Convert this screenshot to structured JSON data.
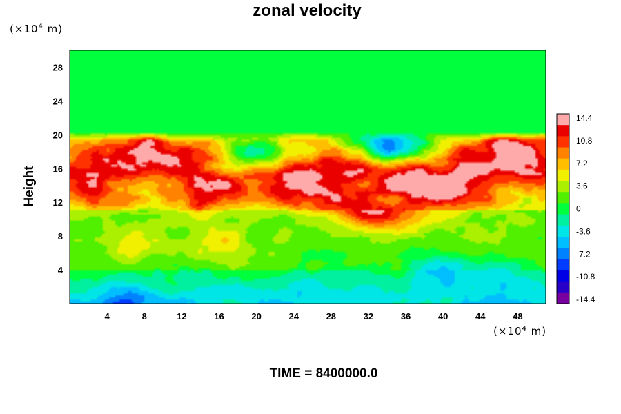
{
  "chart_data": {
    "type": "heatmap",
    "title": "zonal velocity",
    "ylabel": "Height",
    "xunit": {
      "prefix": "(×10",
      "exp": "4",
      "suffix": " m)"
    },
    "yunit": {
      "prefix": "(×10",
      "exp": "4",
      "suffix": " m)"
    },
    "xlim": [
      0,
      51
    ],
    "ylim": [
      0,
      30
    ],
    "xticks": [
      4,
      8,
      12,
      16,
      20,
      24,
      28,
      32,
      36,
      40,
      44,
      48
    ],
    "yticks": [
      4,
      8,
      12,
      16,
      20,
      24,
      28
    ],
    "colorbar": {
      "ticks": [
        "14.4",
        "10.8",
        "7.2",
        "3.6",
        "0",
        "-3.6",
        "-7.2",
        "-10.8",
        "-14.4"
      ],
      "range": [
        -14.4,
        14.4
      ]
    },
    "field_description_regions": [
      {
        "y_range": [
          20,
          30
        ],
        "value": 0
      },
      {
        "y_range": [
          11,
          20
        ],
        "value_range": [
          8,
          14.4
        ]
      },
      {
        "y_range": [
          4,
          11
        ],
        "value_range": [
          0,
          4
        ]
      },
      {
        "y_range": [
          0,
          4
        ],
        "value_range": [
          -5,
          -1
        ]
      }
    ],
    "blobs": [
      {
        "x": 6.5,
        "y": 17.8,
        "value": 15
      },
      {
        "x": 11.5,
        "y": 17,
        "value": 14.6
      },
      {
        "x": 3,
        "y": 15,
        "value": 10
      },
      {
        "x": 1.5,
        "y": 13.5,
        "value": 11
      },
      {
        "x": 12,
        "y": 13.3,
        "value": 11
      },
      {
        "x": 16,
        "y": 14,
        "value": 12
      },
      {
        "x": 19.5,
        "y": 16.5,
        "value": 8
      },
      {
        "x": 23,
        "y": 15,
        "value": 14
      },
      {
        "x": 27,
        "y": 16,
        "value": 12
      },
      {
        "x": 26,
        "y": 13,
        "value": 11
      },
      {
        "x": 31,
        "y": 15,
        "value": 12
      },
      {
        "x": 31.5,
        "y": 11.5,
        "value": 14
      },
      {
        "x": 34.5,
        "y": 10.5,
        "value": 9
      },
      {
        "x": 38,
        "y": 14.5,
        "value": 15
      },
      {
        "x": 41,
        "y": 13.8,
        "value": 15
      },
      {
        "x": 44,
        "y": 16.5,
        "value": 12
      },
      {
        "x": 47,
        "y": 19,
        "value": 14.5
      },
      {
        "x": 49.5,
        "y": 16,
        "value": 14.5
      },
      {
        "x": 20,
        "y": 18,
        "value": -3
      },
      {
        "x": 33,
        "y": 19,
        "value": -2
      },
      {
        "x": 36,
        "y": 19,
        "value": -2.5
      },
      {
        "x": 7,
        "y": 7.5,
        "value": 7
      },
      {
        "x": 16,
        "y": 7.5,
        "value": 6
      },
      {
        "x": 22,
        "y": 9,
        "value": 2
      },
      {
        "x": 34,
        "y": 6,
        "value": 1
      },
      {
        "x": 40,
        "y": 4,
        "value": -6
      },
      {
        "x": 46,
        "y": 3,
        "value": -5
      },
      {
        "x": 6,
        "y": 0.5,
        "value": -8
      },
      {
        "x": 24,
        "y": 1,
        "value": -4
      }
    ]
  },
  "time_label": "TIME = 8400000.0"
}
